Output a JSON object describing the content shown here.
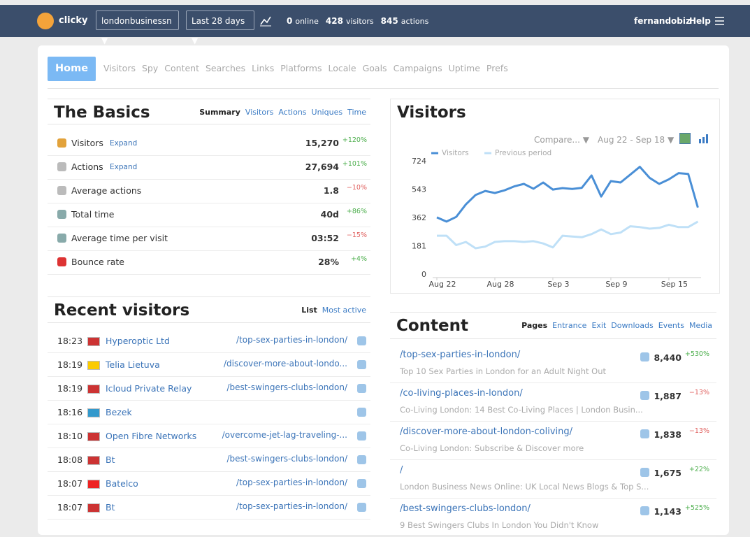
{
  "topbar": {
    "logo": "clicky",
    "site": "londonbusinessn ▼",
    "range": "Last 28 days ▼",
    "stats": [
      {
        "num": "0",
        "label": "online"
      },
      {
        "num": "428",
        "label": "visitors"
      },
      {
        "num": "845",
        "label": "actions"
      }
    ],
    "user": "fernandobiz",
    "help": "Help"
  },
  "nav": [
    "Home",
    "Visitors",
    "Spy",
    "Content",
    "Searches",
    "Links",
    "Platforms",
    "Locale",
    "Goals",
    "Campaigns",
    "Uptime",
    "Prefs"
  ],
  "basics": {
    "title": "The Basics",
    "tabs": [
      "Summary",
      "Visitors",
      "Actions",
      "Uniques",
      "Time"
    ],
    "rows": [
      {
        "label": "Visitors",
        "link": "Expand",
        "value": "15,270",
        "change": "+120%"
      },
      {
        "label": "Actions",
        "link": "Expand",
        "value": "27,694",
        "change": "+101%"
      },
      {
        "label": "Average actions",
        "value": "1.8",
        "change": "−10%"
      },
      {
        "label": "Total time",
        "value": "40d",
        "change": "+86%"
      },
      {
        "label": "Average time per visit",
        "value": "03:52",
        "change": "−15%"
      },
      {
        "label": "Bounce rate",
        "value": "28%",
        "change": "+4%"
      }
    ]
  },
  "visitors_panel": {
    "controls": [
      "Compare... ▼",
      "Aug 22 - Sep 18 ▼"
    ]
  },
  "chart_data": {
    "type": "line",
    "title": "Visitors",
    "categories": [
      "Aug 22",
      null,
      null,
      null,
      null,
      null,
      "Aug 28",
      null,
      null,
      null,
      null,
      null,
      "Sep 3",
      null,
      null,
      null,
      null,
      null,
      "Sep 9",
      null,
      null,
      null,
      null,
      null,
      "Sep 15",
      null,
      null,
      null
    ],
    "series": [
      {
        "name": "Visitors",
        "color": "#4a8fd6",
        "values": [
          367,
          340,
          370,
          450,
          510,
          536,
          523,
          540,
          565,
          581,
          550,
          590,
          545,
          554,
          549,
          556,
          635,
          500,
          599,
          590,
          640,
          690,
          620,
          581,
          610,
          650,
          645,
          430
        ]
      },
      {
        "name": "Previous period",
        "color": "#bfe0f7",
        "values": [
          250,
          250,
          190,
          210,
          170,
          180,
          210,
          215,
          215,
          210,
          215,
          200,
          175,
          250,
          245,
          240,
          260,
          290,
          260,
          270,
          310,
          305,
          295,
          300,
          320,
          305,
          305,
          340
        ]
      }
    ],
    "ylim": [
      0,
      724
    ],
    "yticks": [
      0,
      181,
      362,
      543,
      724
    ],
    "grid": false
  },
  "recent": {
    "title": "Recent visitors",
    "tabs": [
      "List",
      "Most active"
    ],
    "rows": [
      {
        "time": "18:23",
        "name": "Hyperoptic Ltd",
        "path": "/top-sex-parties-in-london/"
      },
      {
        "time": "18:19",
        "name": "Telia Lietuva",
        "path": "/discover-more-about-londo..."
      },
      {
        "time": "18:19",
        "name": "Icloud Private Relay",
        "path": "/best-swingers-clubs-london/"
      },
      {
        "time": "18:16",
        "name": "Bezek"
      },
      {
        "time": "18:10",
        "name": "Open Fibre Networks",
        "path": "/overcome-jet-lag-traveling-..."
      },
      {
        "time": "18:08",
        "name": "Bt",
        "path": "/best-swingers-clubs-london/"
      },
      {
        "time": "18:07",
        "name": "Batelco",
        "path": "/top-sex-parties-in-london/"
      },
      {
        "time": "18:07",
        "name": "Bt",
        "path": "/top-sex-parties-in-london/"
      }
    ]
  },
  "content": {
    "title": "Content",
    "tabs": [
      "Pages",
      "Entrance",
      "Exit",
      "Downloads",
      "Events",
      "Media"
    ],
    "rows": [
      {
        "path": "/top-sex-parties-in-london/",
        "desc": "Top 10 Sex Parties in London for an Adult Night Out",
        "value": "8,440",
        "change": "+530%"
      },
      {
        "path": "/co-living-places-in-london/",
        "desc": "Co-Living London: 14 Best Co-Living Places | London Busin...",
        "value": "1,887",
        "change": "−13%"
      },
      {
        "path": "/discover-more-about-london-coliving/",
        "desc": "Co-Living London: Subscribe & Discover more",
        "value": "1,838",
        "change": "−13%"
      },
      {
        "path": "/",
        "desc": "London Business News Online: UK Local News Blogs & Top S...",
        "value": "1,675",
        "change": "+22%"
      },
      {
        "path": "/best-swingers-clubs-london/",
        "desc": "9 Best Swingers Clubs In London You Didn't Know",
        "value": "1,143",
        "change": "+525%"
      }
    ]
  }
}
